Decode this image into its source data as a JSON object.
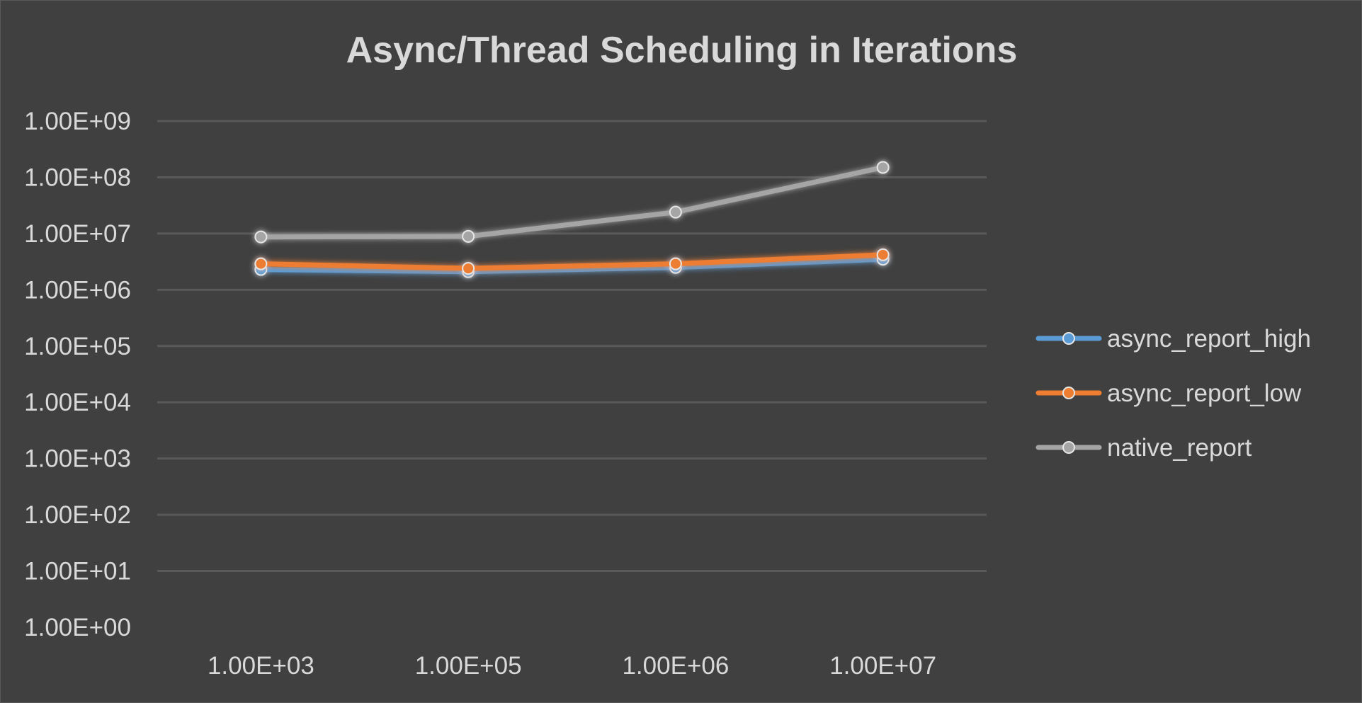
{
  "chart_data": {
    "type": "line",
    "title": "Async/Thread Scheduling in Iterations",
    "xlabel": "",
    "ylabel": "",
    "y_scale": "log",
    "ylim": [
      1,
      1000000000
    ],
    "grid": true,
    "legend_position": "right",
    "categories": [
      "1.00E+03",
      "1.00E+05",
      "1.00E+06",
      "1.00E+07"
    ],
    "y_tick_labels": [
      "1.00E+00",
      "1.00E+01",
      "1.00E+02",
      "1.00E+03",
      "1.00E+04",
      "1.00E+05",
      "1.00E+06",
      "1.00E+07",
      "1.00E+08",
      "1.00E+09"
    ],
    "series": [
      {
        "name": "async_report_high",
        "color": "#5b9bd5",
        "values": [
          2300000,
          2100000,
          2500000,
          3500000
        ]
      },
      {
        "name": "async_report_low",
        "color": "#ed7d31",
        "values": [
          2900000,
          2400000,
          2900000,
          4200000
        ]
      },
      {
        "name": "native_report",
        "color": "#a5a5a5",
        "values": [
          8700000,
          8900000,
          24000000,
          150000000
        ]
      }
    ]
  }
}
